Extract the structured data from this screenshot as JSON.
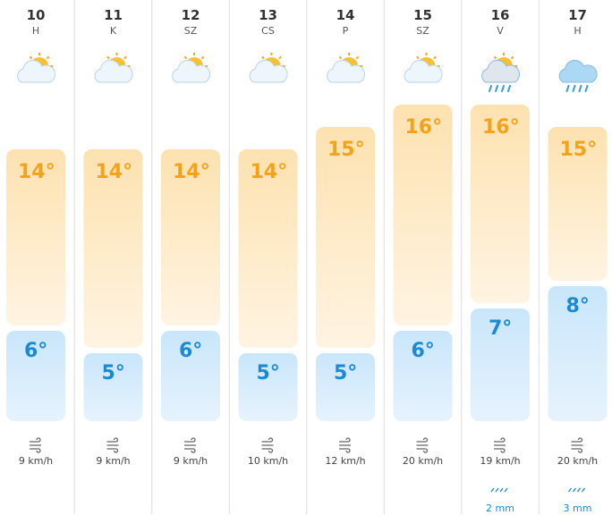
{
  "days": [
    {
      "day": "10",
      "weekday": "H",
      "high": {
        "value": 14,
        "label": "14°"
      },
      "low": {
        "value": 6,
        "label": "6°"
      },
      "wind": "9 km/h",
      "precip": null
    },
    {
      "day": "11",
      "weekday": "K",
      "high": {
        "value": 14,
        "label": "14°"
      },
      "low": {
        "value": 5,
        "label": "5°"
      },
      "wind": "9 km/h",
      "precip": null
    },
    {
      "day": "12",
      "weekday": "SZ",
      "high": {
        "value": 14,
        "label": "14°"
      },
      "low": {
        "value": 6,
        "label": "6°"
      },
      "wind": "9 km/h",
      "precip": null
    },
    {
      "day": "13",
      "weekday": "CS",
      "high": {
        "value": 14,
        "label": "14°"
      },
      "low": {
        "value": 5,
        "label": "5°"
      },
      "wind": "10 km/h",
      "precip": null
    },
    {
      "day": "14",
      "weekday": "P",
      "high": {
        "value": 15,
        "label": "15°"
      },
      "low": {
        "value": 5,
        "label": "5°"
      },
      "wind": "12 km/h",
      "precip": null
    },
    {
      "day": "15",
      "weekday": "SZ",
      "high": {
        "value": 16,
        "label": "16°"
      },
      "low": {
        "value": 6,
        "label": "6°"
      },
      "wind": "20 km/h",
      "precip": null
    },
    {
      "day": "16",
      "weekday": "V",
      "high": {
        "value": 16,
        "label": "16°"
      },
      "low": {
        "value": 7,
        "label": "7°"
      },
      "wind": "19 km/h",
      "precip": "2 mm"
    },
    {
      "day": "17",
      "weekday": "H",
      "high": {
        "value": 15,
        "label": "15°"
      },
      "low": {
        "value": 8,
        "label": "8°"
      },
      "wind": "20 km/h",
      "precip": "3 mm"
    }
  ]
}
